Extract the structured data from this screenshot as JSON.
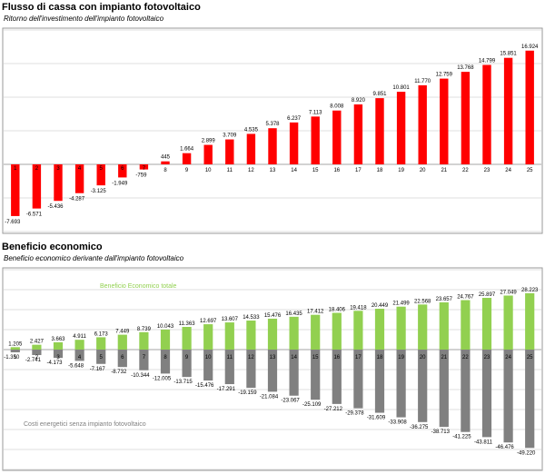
{
  "chart_data": [
    {
      "type": "bar",
      "title": "Flusso di cassa con impianto fotovoltaico",
      "subtitle": "Ritorno dell'investimento dell'impianto fotovoltaico",
      "categories": [
        "1",
        "2",
        "3",
        "4",
        "5",
        "6",
        "7",
        "8",
        "9",
        "10",
        "11",
        "12",
        "13",
        "14",
        "15",
        "16",
        "17",
        "18",
        "19",
        "20",
        "21",
        "22",
        "23",
        "24",
        "25"
      ],
      "values": [
        -7693,
        -6571,
        -5436,
        -4287,
        -3125,
        -1949,
        -759,
        445,
        1664,
        2899,
        3709,
        4535,
        5378,
        6237,
        7113,
        8008,
        8920,
        9851,
        10801,
        11770,
        12759,
        13768,
        14799,
        15851,
        16924
      ],
      "value_labels": [
        "-7.693",
        "-6.571",
        "-5.436",
        "-4.287",
        "-3.125",
        "-1.949",
        "-759",
        "445",
        "1.664",
        "2.899",
        "3.709",
        "4.535",
        "5.378",
        "6.237",
        "7.113",
        "8.008",
        "8.920",
        "9.851",
        "10.801",
        "11.770",
        "12.759",
        "13.768",
        "14.799",
        "15.851",
        "16.924"
      ],
      "ylim": [
        -10000,
        20000
      ],
      "grid": true,
      "colors": {
        "bar": "#ff0000"
      }
    },
    {
      "type": "bar",
      "title": "Beneficio economico",
      "subtitle": "Beneficio economico derivante dall'impianto fotovoltaico",
      "categories": [
        "1",
        "2",
        "3",
        "4",
        "5",
        "6",
        "7",
        "8",
        "9",
        "10",
        "11",
        "12",
        "13",
        "14",
        "15",
        "16",
        "17",
        "18",
        "19",
        "20",
        "21",
        "22",
        "23",
        "24",
        "25"
      ],
      "series": [
        {
          "name": "Beneficio Economico totale",
          "values": [
            1205,
            2427,
            3663,
            4911,
            6173,
            7449,
            8739,
            10043,
            11363,
            12697,
            13607,
            14533,
            15476,
            16435,
            17412,
            18406,
            19418,
            20449,
            21499,
            22568,
            23657,
            24767,
            25897,
            27049,
            28223
          ],
          "value_labels": [
            "1.205",
            "2.427",
            "3.663",
            "4.911",
            "6.173",
            "7.449",
            "8.739",
            "10.043",
            "11.363",
            "12.697",
            "13.607",
            "14.533",
            "15.476",
            "16.435",
            "17.412",
            "18.406",
            "19.418",
            "20.449",
            "21.499",
            "22.568",
            "23.657",
            "24.767",
            "25.897",
            "27.049",
            "28.223"
          ],
          "color": "#92d050"
        },
        {
          "name": "Costi energetici senza impianto fotovoltaico",
          "values": [
            -1350,
            -2741,
            -4173,
            -5648,
            -7167,
            -8732,
            -10344,
            -12005,
            -13715,
            -15476,
            -17291,
            -19159,
            -21084,
            -23067,
            -25109,
            -27212,
            -29378,
            -31609,
            -33908,
            -36275,
            -38713,
            -41225,
            -43811,
            -46476,
            -49220
          ],
          "value_labels": [
            "-1.350",
            "-2.741",
            "-4.173",
            "-5.648",
            "-7.167",
            "-8.732",
            "-10.344",
            "-12.005",
            "-13.715",
            "-15.476",
            "-17.291",
            "-19.159",
            "-21.084",
            "-23.067",
            "-25.109",
            "-27.212",
            "-29.378",
            "-31.609",
            "-33.908",
            "-36.275",
            "-38.713",
            "-41.225",
            "-43.811",
            "-46.476",
            "-49.220"
          ],
          "color": "#808080"
        }
      ],
      "ylim": [
        -60000,
        40000
      ],
      "grid": true
    }
  ]
}
